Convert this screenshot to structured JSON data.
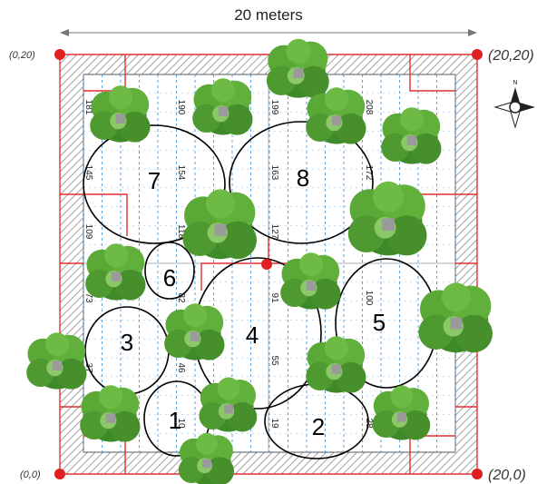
{
  "header": {
    "width_label": "20 meters"
  },
  "corners": {
    "top_left": "(0,20)",
    "top_right": "(20,20)",
    "bottom_left": "(0,0)",
    "bottom_right": "(20,0)"
  },
  "compass": {
    "north": "N"
  },
  "zones": [
    {
      "id": "1",
      "label": "1"
    },
    {
      "id": "2",
      "label": "2"
    },
    {
      "id": "3",
      "label": "3"
    },
    {
      "id": "4",
      "label": "4"
    },
    {
      "id": "5",
      "label": "5"
    },
    {
      "id": "6",
      "label": "6"
    },
    {
      "id": "7",
      "label": "7"
    },
    {
      "id": "8",
      "label": "8"
    }
  ],
  "plot_numbers": [
    "181",
    "190",
    "199",
    "208",
    "145",
    "154",
    "163",
    "172",
    "109",
    "118",
    "127",
    "73",
    "82",
    "91",
    "100",
    "37",
    "46",
    "55",
    "10",
    "19",
    "28"
  ],
  "colors": {
    "boundary": "#e03030",
    "grid": "#3a8fd8",
    "wall": "#8a8a8a",
    "tree": "#4f9a2f"
  }
}
